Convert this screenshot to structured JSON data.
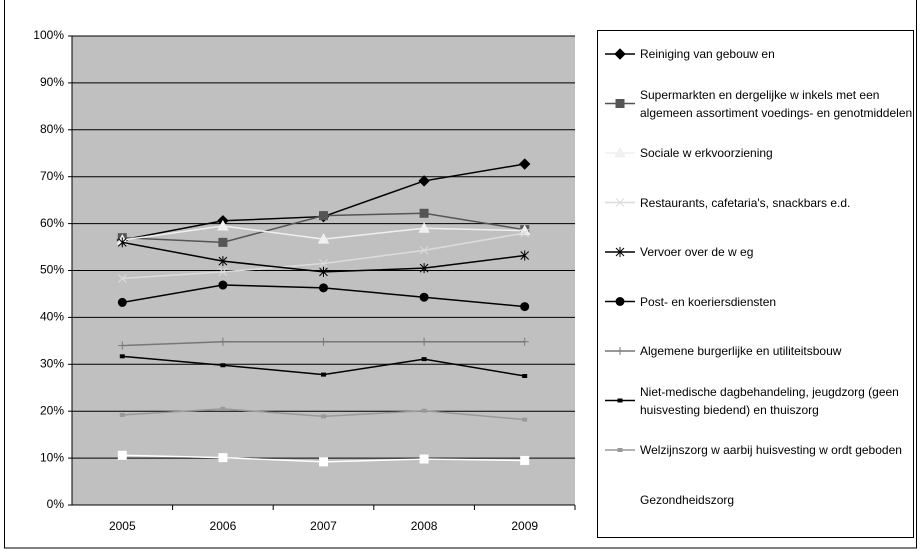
{
  "chart_data": {
    "type": "line",
    "categories": [
      "2005",
      "2006",
      "2007",
      "2008",
      "2009"
    ],
    "ylim": [
      0,
      100
    ],
    "yticks": [
      {
        "value": 0,
        "label": "0%"
      },
      {
        "value": 10,
        "label": "10%"
      },
      {
        "value": 20,
        "label": "20%"
      },
      {
        "value": 30,
        "label": "30%"
      },
      {
        "value": 40,
        "label": "40%"
      },
      {
        "value": 50,
        "label": "50%"
      },
      {
        "value": 60,
        "label": "60%"
      },
      {
        "value": 70,
        "label": "70%"
      },
      {
        "value": 80,
        "label": "80%"
      },
      {
        "value": 90,
        "label": "90%"
      },
      {
        "value": 100,
        "label": "100%"
      }
    ],
    "grid": true,
    "legend": "right",
    "plot_background": "#c0c0c0",
    "series": [
      {
        "name": "Reiniging van gebouw en",
        "color": "#000000",
        "marker": "diamond",
        "values": [
          56.5,
          60.6,
          61.5,
          69.1,
          72.7
        ]
      },
      {
        "name": "Supermarkten en dergelijke w inkels met een algemeen assortiment voedings- en genotmiddelen",
        "color": "#555555",
        "marker": "square",
        "values": [
          57.0,
          56.0,
          61.7,
          62.2,
          58.7
        ]
      },
      {
        "name": "Sociale w erkvoorziening",
        "color": "#f0f0f0",
        "marker": "triangle",
        "values": [
          56.5,
          59.5,
          56.7,
          59.0,
          58.5
        ]
      },
      {
        "name": "Restaurants, cafetaria's, snackbars e.d.",
        "color": "#dcdcdc",
        "marker": "x",
        "values": [
          48.3,
          49.7,
          51.5,
          54.3,
          58.0
        ]
      },
      {
        "name": "Vervoer over de w eg",
        "color": "#000000",
        "marker": "star",
        "values": [
          56.0,
          52.0,
          49.7,
          50.5,
          53.2
        ]
      },
      {
        "name": "Post- en koeriersdiensten",
        "color": "#000000",
        "marker": "circle",
        "values": [
          43.2,
          46.9,
          46.3,
          44.3,
          42.3
        ]
      },
      {
        "name": "Algemene burgerlijke en utiliteitsbouw",
        "color": "#777777",
        "marker": "plus",
        "values": [
          34.0,
          34.8,
          34.8,
          34.8,
          34.8
        ]
      },
      {
        "name": "Niet-medische dagbehandeling, jeugdzorg (geen huisvesting biedend) en thuiszorg",
        "color": "#000000",
        "marker": "dash",
        "values": [
          31.7,
          29.8,
          27.8,
          31.1,
          27.5
        ]
      },
      {
        "name": "Welzijnszorg w aarbij huisvesting w ordt geboden",
        "color": "#999999",
        "marker": "dash",
        "values": [
          19.2,
          20.5,
          18.9,
          20.1,
          18.2
        ]
      },
      {
        "name": "Gezondheidszorg",
        "color": "#ffffff",
        "marker": "square",
        "values": [
          10.6,
          10.1,
          9.2,
          9.8,
          9.5
        ]
      }
    ]
  }
}
